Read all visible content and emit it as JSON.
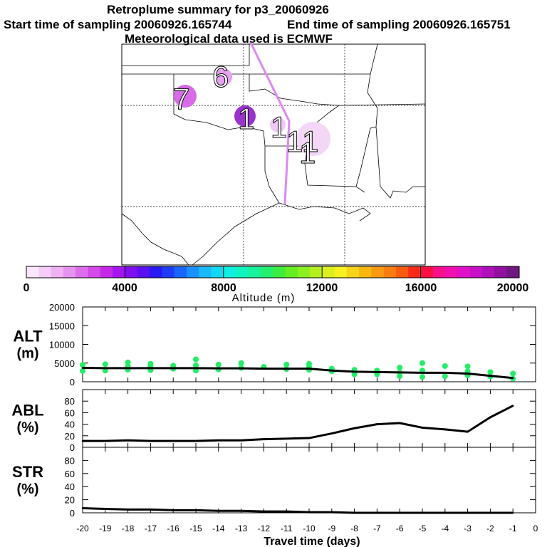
{
  "title": {
    "line1": "Retroplume summary for p3_20060926",
    "start_label": "Start time of sampling 20060926.165744",
    "end_label": "End time of sampling 20060926.165751",
    "met_label": "Meteorological data used is ECMWF"
  },
  "map": {
    "plume_labels": [
      {
        "text": "7",
        "color": "#d76be8"
      },
      {
        "text": "6",
        "color": "#e8a0f0"
      },
      {
        "text": "1",
        "color": "#9a32cd"
      },
      {
        "text": "1",
        "color": "#f0c8f4"
      },
      {
        "text": "1",
        "color": "#f4d6f6"
      },
      {
        "text": "1",
        "color": "#f8e4f8"
      },
      {
        "text": "1",
        "color": "#f8e4f8"
      }
    ],
    "track_color": "#dd88f2"
  },
  "colorbar": {
    "tick_labels": [
      "0",
      "4000",
      "8000",
      "12000",
      "16000",
      "20000"
    ],
    "xlabel": "Altitude (m)",
    "range": [
      0,
      20000
    ],
    "colors": [
      "#fbe6fb",
      "#f5cdf7",
      "#eeb2f3",
      "#e693ef",
      "#dd6ee9",
      "#d44ae6",
      "#c728e8",
      "#a516ee",
      "#8010f0",
      "#5a10f2",
      "#2a18f5",
      "#1d3cf8",
      "#1a66fa",
      "#1a90fc",
      "#1ab8fc",
      "#12d8f4",
      "#10f0e0",
      "#10f4c0",
      "#18f29a",
      "#22ee70",
      "#3cec40",
      "#64ee20",
      "#8cf020",
      "#b4f020",
      "#dcf020",
      "#f8f020",
      "#f8d418",
      "#f8b810",
      "#f89a10",
      "#f87c10",
      "#f85a10",
      "#f82a18",
      "#f81040",
      "#f8108a",
      "#f010b0",
      "#e010c8",
      "#c810c8",
      "#b010b8",
      "#9010a0",
      "#701880"
    ]
  },
  "chart_data": [
    {
      "type": "line",
      "panel": "ALT",
      "ylabel_lines": [
        "ALT",
        "(m)"
      ],
      "ylim": [
        0,
        20000
      ],
      "yticks": [
        "0",
        "5000",
        "10000",
        "15000",
        "20000"
      ],
      "ytick_values": [
        0,
        5000,
        10000,
        15000,
        20000
      ],
      "x": [
        -20,
        -19,
        -18,
        -17,
        -16,
        -15,
        -14,
        -13,
        -12,
        -11,
        -10,
        -9,
        -8,
        -7,
        -6,
        -5,
        -4,
        -3,
        -2,
        -1
      ],
      "values": [
        3700,
        3650,
        3650,
        3650,
        3650,
        3650,
        3600,
        3600,
        3500,
        3500,
        3500,
        3000,
        2700,
        2600,
        2500,
        2400,
        2400,
        2200,
        1600,
        1000
      ],
      "scatter": {
        "color": "#22ee66",
        "x": [
          -20,
          -20,
          -19,
          -19,
          -18,
          -18,
          -18,
          -17,
          -17,
          -17,
          -16,
          -16,
          -15,
          -15,
          -15,
          -14,
          -14,
          -13,
          -13,
          -12,
          -11,
          -11,
          -10,
          -10,
          -10,
          -9,
          -9,
          -8,
          -8,
          -7,
          -7,
          -6,
          -6,
          -6,
          -5,
          -5,
          -5,
          -4,
          -4,
          -3,
          -3,
          -3,
          -2,
          -2,
          -1,
          -1
        ],
        "y": [
          4500,
          2900,
          4700,
          3000,
          5200,
          4100,
          3200,
          4800,
          4000,
          3100,
          4300,
          3500,
          6000,
          4400,
          3000,
          4600,
          3300,
          5000,
          3700,
          4000,
          4600,
          3400,
          4800,
          4000,
          3200,
          3500,
          2800,
          3200,
          2000,
          3000,
          2000,
          3800,
          2500,
          1500,
          5000,
          3000,
          1300,
          4200,
          1500,
          4100,
          2800,
          1700,
          2600,
          1400,
          2200,
          800
        ]
      }
    },
    {
      "type": "line",
      "panel": "ABL",
      "ylabel_lines": [
        "ABL",
        "(%)"
      ],
      "ylim": [
        0,
        100
      ],
      "yticks": [
        "0",
        "20",
        "40",
        "60",
        "80"
      ],
      "ytick_values": [
        0,
        20,
        40,
        60,
        80
      ],
      "x": [
        -20,
        -19,
        -18,
        -17,
        -16,
        -15,
        -14,
        -13,
        -12,
        -11,
        -10,
        -9,
        -8,
        -7,
        -6,
        -5,
        -4,
        -3,
        -2,
        -1
      ],
      "values": [
        11,
        11,
        12,
        11,
        11,
        11,
        12,
        12,
        14,
        15,
        16,
        24,
        33,
        40,
        42,
        34,
        31,
        27,
        52,
        72
      ]
    },
    {
      "type": "line",
      "panel": "STR",
      "ylabel_lines": [
        "STR",
        "(%)"
      ],
      "ylim": [
        0,
        100
      ],
      "yticks": [
        "0",
        "20",
        "40",
        "60",
        "80"
      ],
      "ytick_values": [
        0,
        20,
        40,
        60,
        80
      ],
      "x": [
        -20,
        -19,
        -18,
        -17,
        -16,
        -15,
        -14,
        -13,
        -12,
        -11,
        -10,
        -9,
        -8,
        -7,
        -6,
        -5,
        -4,
        -3,
        -2,
        -1
      ],
      "values": [
        7,
        6,
        5,
        5,
        4,
        4,
        3,
        3,
        2,
        2,
        1,
        1,
        0,
        0,
        0,
        0,
        0,
        0,
        0,
        0
      ]
    }
  ],
  "xaxis": {
    "xlabel": "Travel time (days)",
    "range": [
      -20,
      0
    ],
    "tick_labels": [
      "-20",
      "-19",
      "-18",
      "-17",
      "-16",
      "-15",
      "-14",
      "-13",
      "-12",
      "-11",
      "-10",
      "-9",
      "-8",
      "-7",
      "-6",
      "-5",
      "-4",
      "-3",
      "-2",
      "-1",
      "0"
    ]
  }
}
